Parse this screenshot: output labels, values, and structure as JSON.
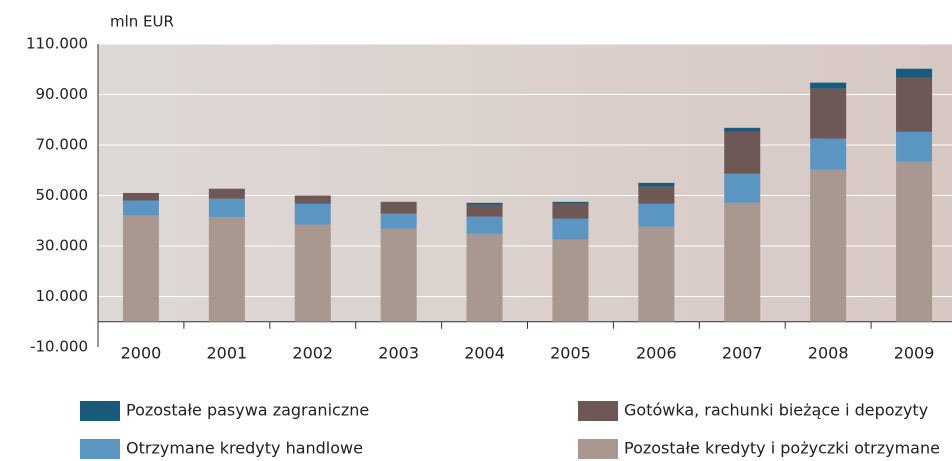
{
  "chart_data": {
    "type": "bar",
    "stacked": true,
    "y_label": "mln EUR",
    "categories": [
      "2000",
      "2001",
      "2002",
      "2003",
      "2004",
      "2005",
      "2006",
      "2007",
      "2008",
      "2009"
    ],
    "series": [
      {
        "name": "Pozostałe kredyty i pożyczki otrzymane",
        "color": "#a89890",
        "values": [
          42000,
          41500,
          38500,
          36800,
          34800,
          32500,
          37600,
          47100,
          60200,
          63400
        ]
      },
      {
        "name": "Otrzymane kredyty handlowe",
        "color": "#5b96c3",
        "values": [
          6000,
          7200,
          8200,
          6000,
          6800,
          8300,
          9100,
          11500,
          12300,
          11800
        ]
      },
      {
        "name": "Gotówka, rachunki bieżące i depozyty",
        "color": "#6d5856",
        "values": [
          3000,
          4000,
          3300,
          4700,
          4700,
          5900,
          6800,
          16600,
          19800,
          21400
        ]
      },
      {
        "name": "Pozostałe pasywa zagraniczne",
        "color": "#1a5a7a",
        "values": [
          0,
          0,
          0,
          0,
          800,
          800,
          1500,
          1600,
          2400,
          3600
        ]
      }
    ],
    "ylim": [
      -10000,
      110000
    ],
    "yticks": [
      {
        "value": -10000,
        "label": "-10.000"
      },
      {
        "value": 10000,
        "label": "10.000"
      },
      {
        "value": 30000,
        "label": "30.000"
      },
      {
        "value": 50000,
        "label": "50.000"
      },
      {
        "value": 70000,
        "label": "70.000"
      },
      {
        "value": 90000,
        "label": "90.000"
      },
      {
        "value": 110000,
        "label": "110.000"
      }
    ],
    "grid": true
  }
}
